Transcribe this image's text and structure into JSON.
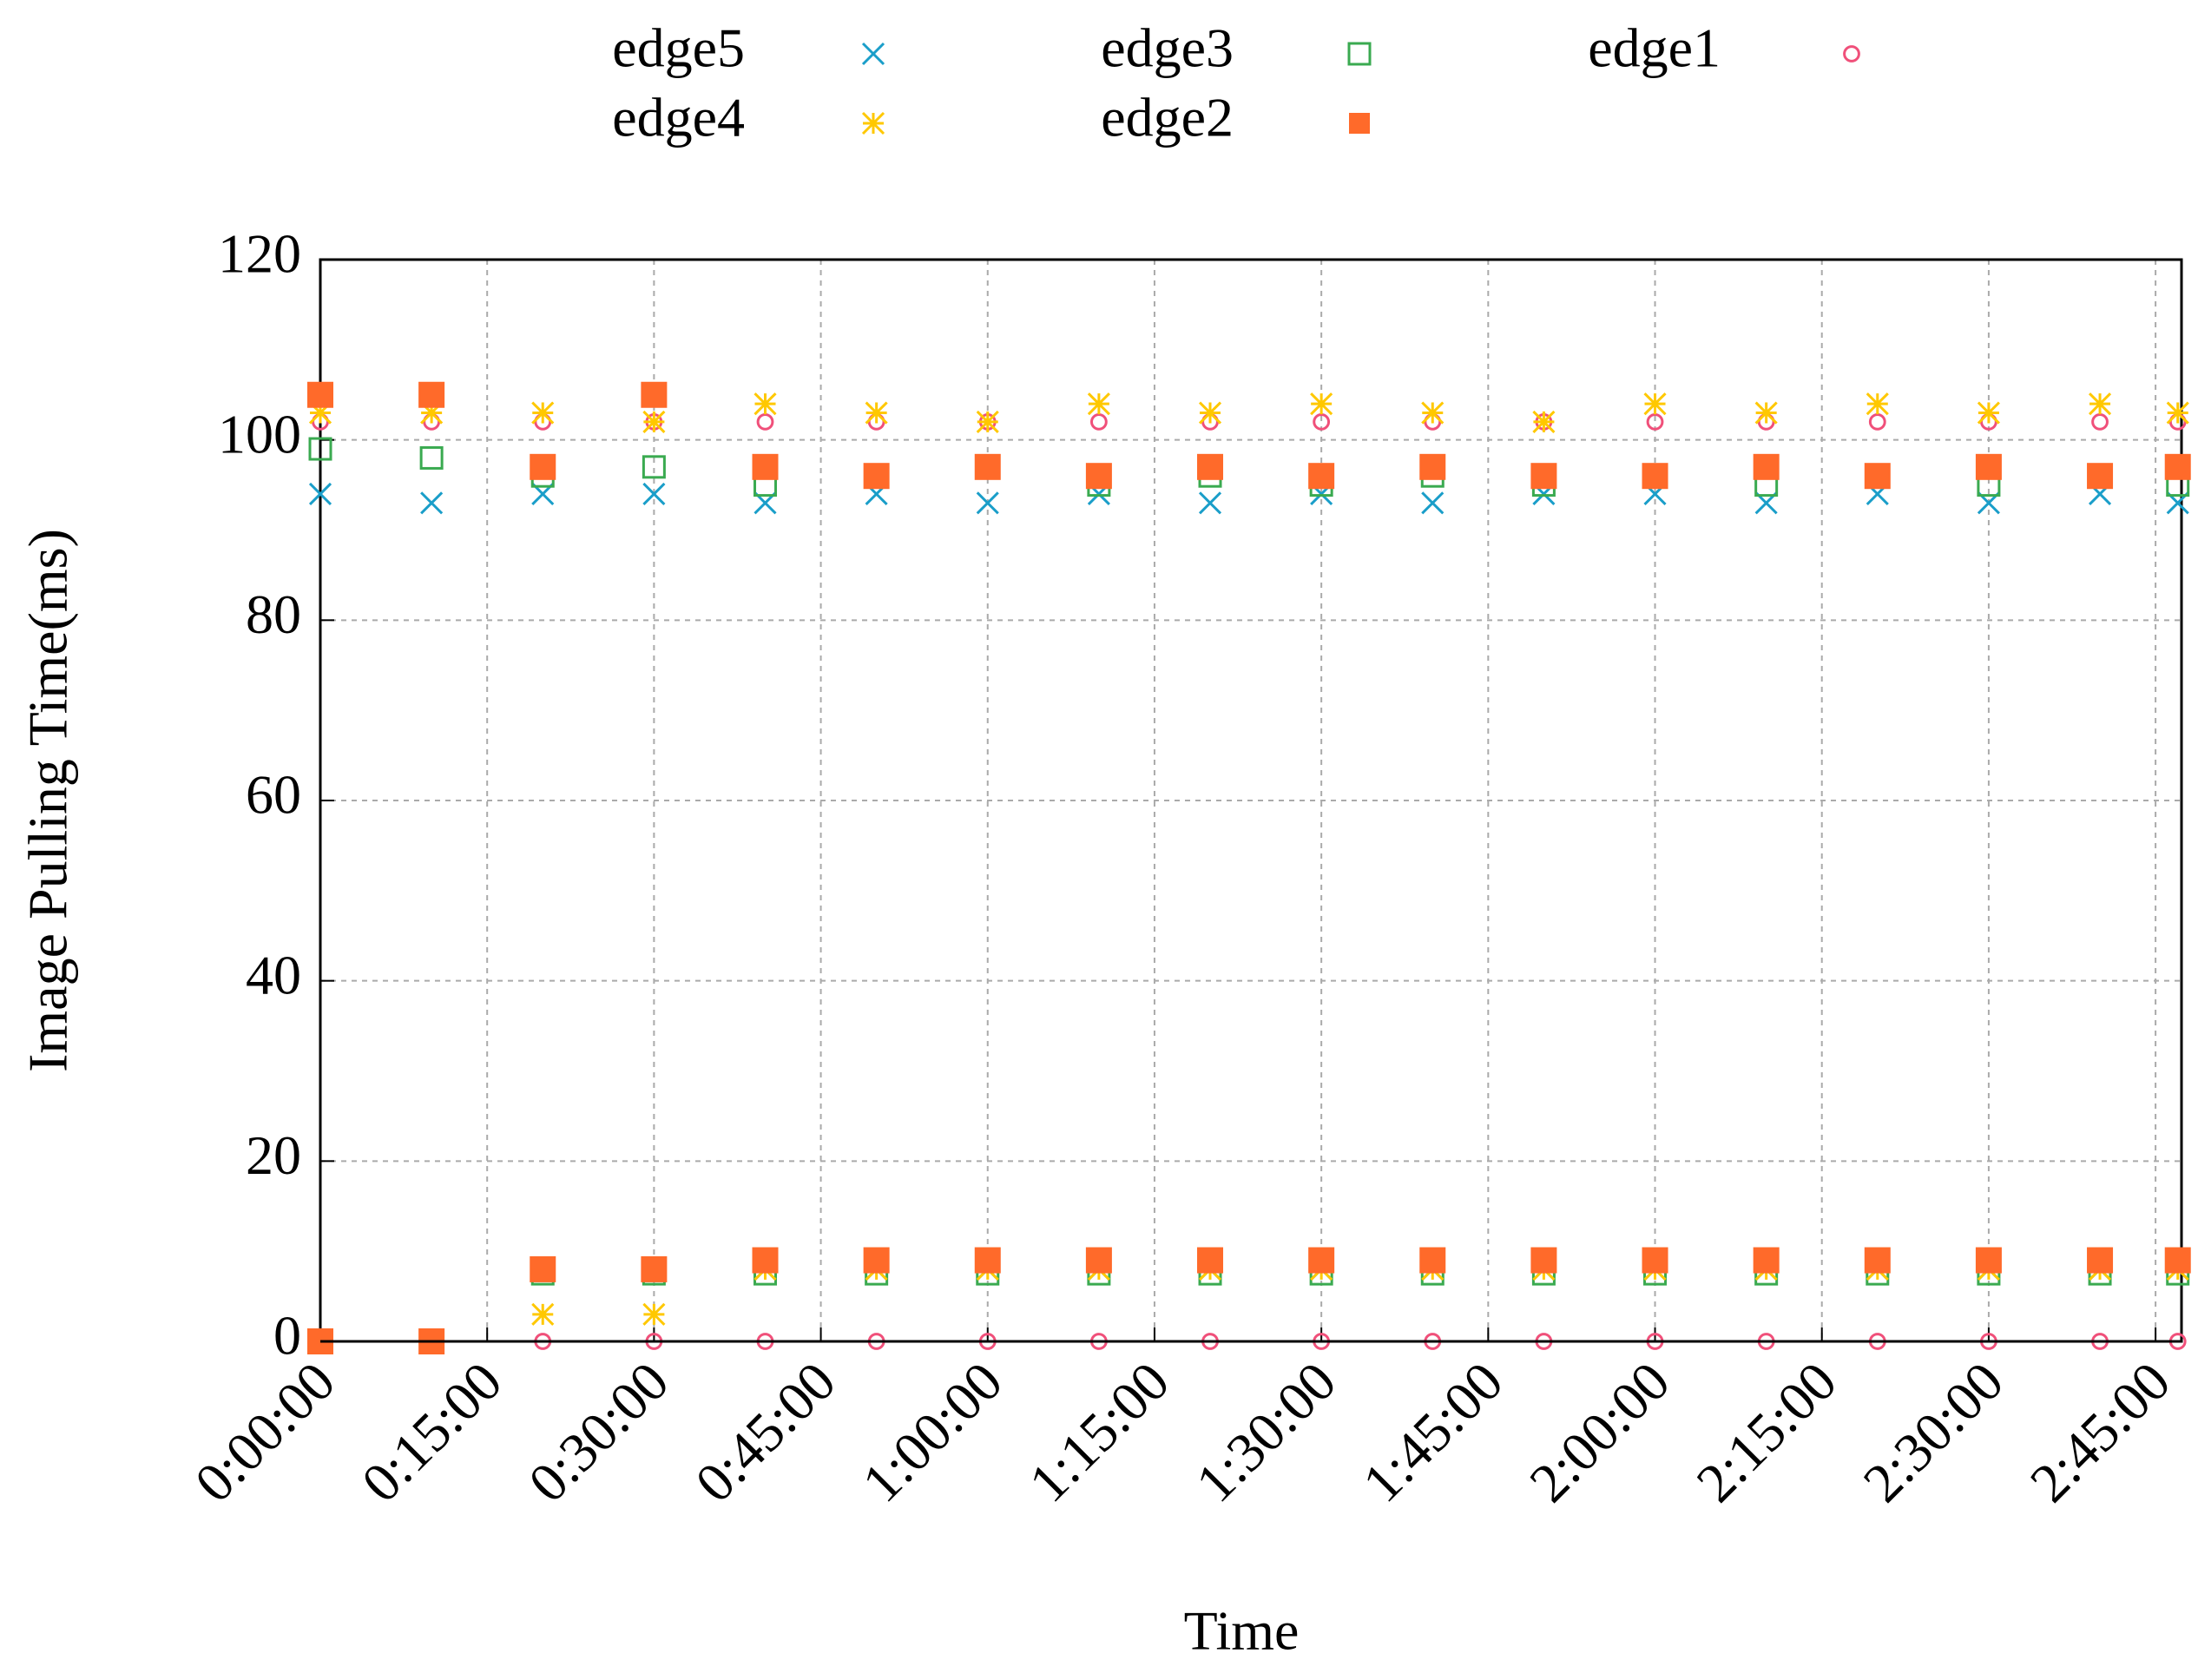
{
  "chart_data": {
    "type": "scatter",
    "xlabel": "Time",
    "ylabel": "Image Pulling Time(ms)",
    "xlim": [
      0,
      10040
    ],
    "ylim": [
      0,
      120
    ],
    "xticks": [
      {
        "value": 0,
        "label": "0:00:00"
      },
      {
        "value": 900,
        "label": "0:15:00"
      },
      {
        "value": 1800,
        "label": "0:30:00"
      },
      {
        "value": 2700,
        "label": "0:45:00"
      },
      {
        "value": 3600,
        "label": "1:00:00"
      },
      {
        "value": 4500,
        "label": "1:15:00"
      },
      {
        "value": 5400,
        "label": "1:30:00"
      },
      {
        "value": 6300,
        "label": "1:45:00"
      },
      {
        "value": 7200,
        "label": "2:00:00"
      },
      {
        "value": 8100,
        "label": "2:15:00"
      },
      {
        "value": 9000,
        "label": "2:30:00"
      },
      {
        "value": 9900,
        "label": "2:45:00"
      }
    ],
    "yticks": [
      0,
      20,
      40,
      60,
      80,
      100,
      120
    ],
    "grid": true,
    "legend": "top",
    "series": [
      {
        "name": "edge5",
        "color": "#1a9ec9",
        "marker": "cross",
        "x": [
          0,
          600,
          1200,
          1800,
          2400,
          3000,
          3600,
          4200,
          4800,
          5400,
          6000,
          6600,
          7200,
          7800,
          8400,
          9000,
          9600,
          10020,
          0,
          600,
          1200,
          1800,
          2400,
          3000,
          3600,
          4200,
          4800,
          5400,
          6000,
          6600,
          7200,
          7800,
          8400,
          9000,
          9600,
          10020
        ],
        "values": [
          94,
          93,
          94,
          94,
          93,
          94,
          93,
          94,
          93,
          94,
          93,
          94,
          94,
          93,
          94,
          93,
          94,
          93,
          0,
          0,
          8,
          8,
          8,
          8,
          8,
          8,
          8,
          8,
          8,
          8,
          8,
          8,
          8,
          8,
          8,
          8
        ]
      },
      {
        "name": "edge3",
        "color": "#3aaa50",
        "marker": "open-square",
        "x": [
          0,
          600,
          1200,
          1800,
          2400,
          3000,
          3600,
          4200,
          4800,
          5400,
          6000,
          6600,
          7200,
          7800,
          8400,
          9000,
          9600,
          10020,
          0,
          600,
          1200,
          1800,
          2400,
          3000,
          3600,
          4200,
          4800,
          5400,
          6000,
          6600,
          7200,
          7800,
          8400,
          9000,
          9600,
          10020
        ],
        "values": [
          99,
          98,
          96,
          97,
          95,
          96,
          97,
          95,
          96,
          95,
          96,
          95,
          96,
          95,
          96,
          95,
          96,
          95,
          0,
          0,
          7.5,
          7.5,
          7.5,
          7.5,
          7.5,
          7.5,
          7.5,
          7.5,
          7.5,
          7.5,
          7.5,
          7.5,
          7.5,
          7.5,
          7.5,
          7.5
        ]
      },
      {
        "name": "edge1",
        "color": "#f0507a",
        "marker": "open-circle",
        "x": [
          0,
          600,
          1200,
          1800,
          2400,
          3000,
          3600,
          4200,
          4800,
          5400,
          6000,
          6600,
          7200,
          7800,
          8400,
          9000,
          9600,
          10020,
          0,
          600,
          1200,
          1800,
          2400,
          3000,
          3600,
          4200,
          4800,
          5400,
          6000,
          6600,
          7200,
          7800,
          8400,
          9000,
          9600,
          10020
        ],
        "values": [
          102,
          102,
          102,
          102,
          102,
          102,
          102,
          102,
          102,
          102,
          102,
          102,
          102,
          102,
          102,
          102,
          102,
          102,
          0,
          0,
          0,
          0,
          0,
          0,
          0,
          0,
          0,
          0,
          0,
          0,
          0,
          0,
          0,
          0,
          0,
          0
        ]
      },
      {
        "name": "edge4",
        "color": "#ffc800",
        "marker": "star",
        "x": [
          0,
          600,
          1200,
          1800,
          2400,
          3000,
          3600,
          4200,
          4800,
          5400,
          6000,
          6600,
          7200,
          7800,
          8400,
          9000,
          9600,
          10020,
          0,
          600,
          1200,
          1800,
          2400,
          3000,
          3600,
          4200,
          4800,
          5400,
          6000,
          6600,
          7200,
          7800,
          8400,
          9000,
          9600,
          10020
        ],
        "values": [
          103,
          103,
          103,
          102,
          104,
          103,
          102,
          104,
          103,
          104,
          103,
          102,
          104,
          103,
          104,
          103,
          104,
          103,
          0,
          0,
          3,
          3,
          8,
          8,
          8,
          8,
          8,
          8,
          8,
          8,
          8,
          8,
          8,
          8,
          8,
          8
        ]
      },
      {
        "name": "edge2",
        "color": "#ff6a2a",
        "marker": "filled-square",
        "x": [
          0,
          600,
          1200,
          1800,
          2400,
          3000,
          3600,
          4200,
          4800,
          5400,
          6000,
          6600,
          7200,
          7800,
          8400,
          9000,
          9600,
          10020,
          0,
          600,
          1200,
          1800,
          2400,
          3000,
          3600,
          4200,
          4800,
          5400,
          6000,
          6600,
          7200,
          7800,
          8400,
          9000,
          9600,
          10020
        ],
        "values": [
          105,
          105,
          97,
          105,
          97,
          96,
          97,
          96,
          97,
          96,
          97,
          96,
          96,
          97,
          96,
          97,
          96,
          97,
          0,
          0,
          8,
          8,
          9,
          9,
          9,
          9,
          9,
          9,
          9,
          9,
          9,
          9,
          9,
          9,
          9,
          9
        ]
      }
    ]
  }
}
